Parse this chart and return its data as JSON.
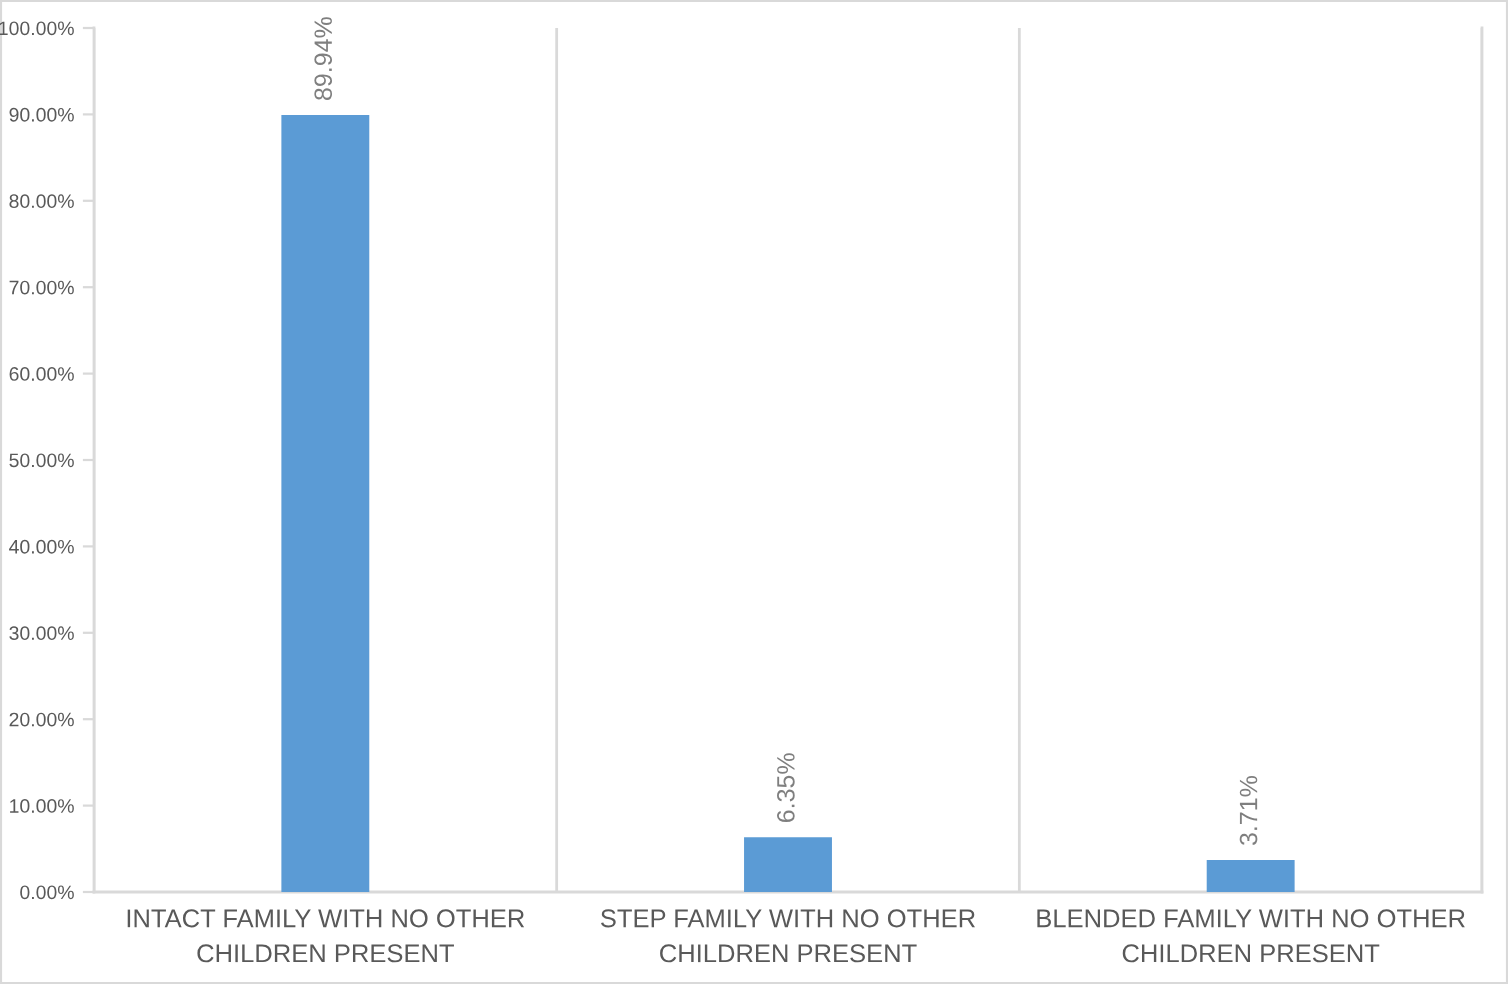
{
  "chart_data": {
    "type": "bar",
    "categories": [
      "INTACT FAMILY WITH NO OTHER\nCHILDREN PRESENT",
      "STEP FAMILY WITH NO OTHER\nCHILDREN PRESENT",
      "BLENDED FAMILY WITH NO OTHER\nCHILDREN PRESENT"
    ],
    "values": [
      89.94,
      6.35,
      3.71
    ],
    "color": "#5b9bd5",
    "value_labels": [
      "89.94%",
      "6.35%",
      "3.71%"
    ],
    "ylim": [
      0,
      100
    ],
    "yticks": [
      {
        "value": 0,
        "label": "0.00%"
      },
      {
        "value": 10,
        "label": "10.00%"
      },
      {
        "value": 20,
        "label": "20.00%"
      },
      {
        "value": 30,
        "label": "30.00%"
      },
      {
        "value": 40,
        "label": "40.00%"
      },
      {
        "value": 50,
        "label": "50.00%"
      },
      {
        "value": 60,
        "label": "60.00%"
      },
      {
        "value": 70,
        "label": "70.00%"
      },
      {
        "value": 80,
        "label": "80.00%"
      },
      {
        "value": 90,
        "label": "90.00%"
      },
      {
        "value": 100,
        "label": "100.00%"
      }
    ],
    "grid": "x",
    "legend": false
  }
}
